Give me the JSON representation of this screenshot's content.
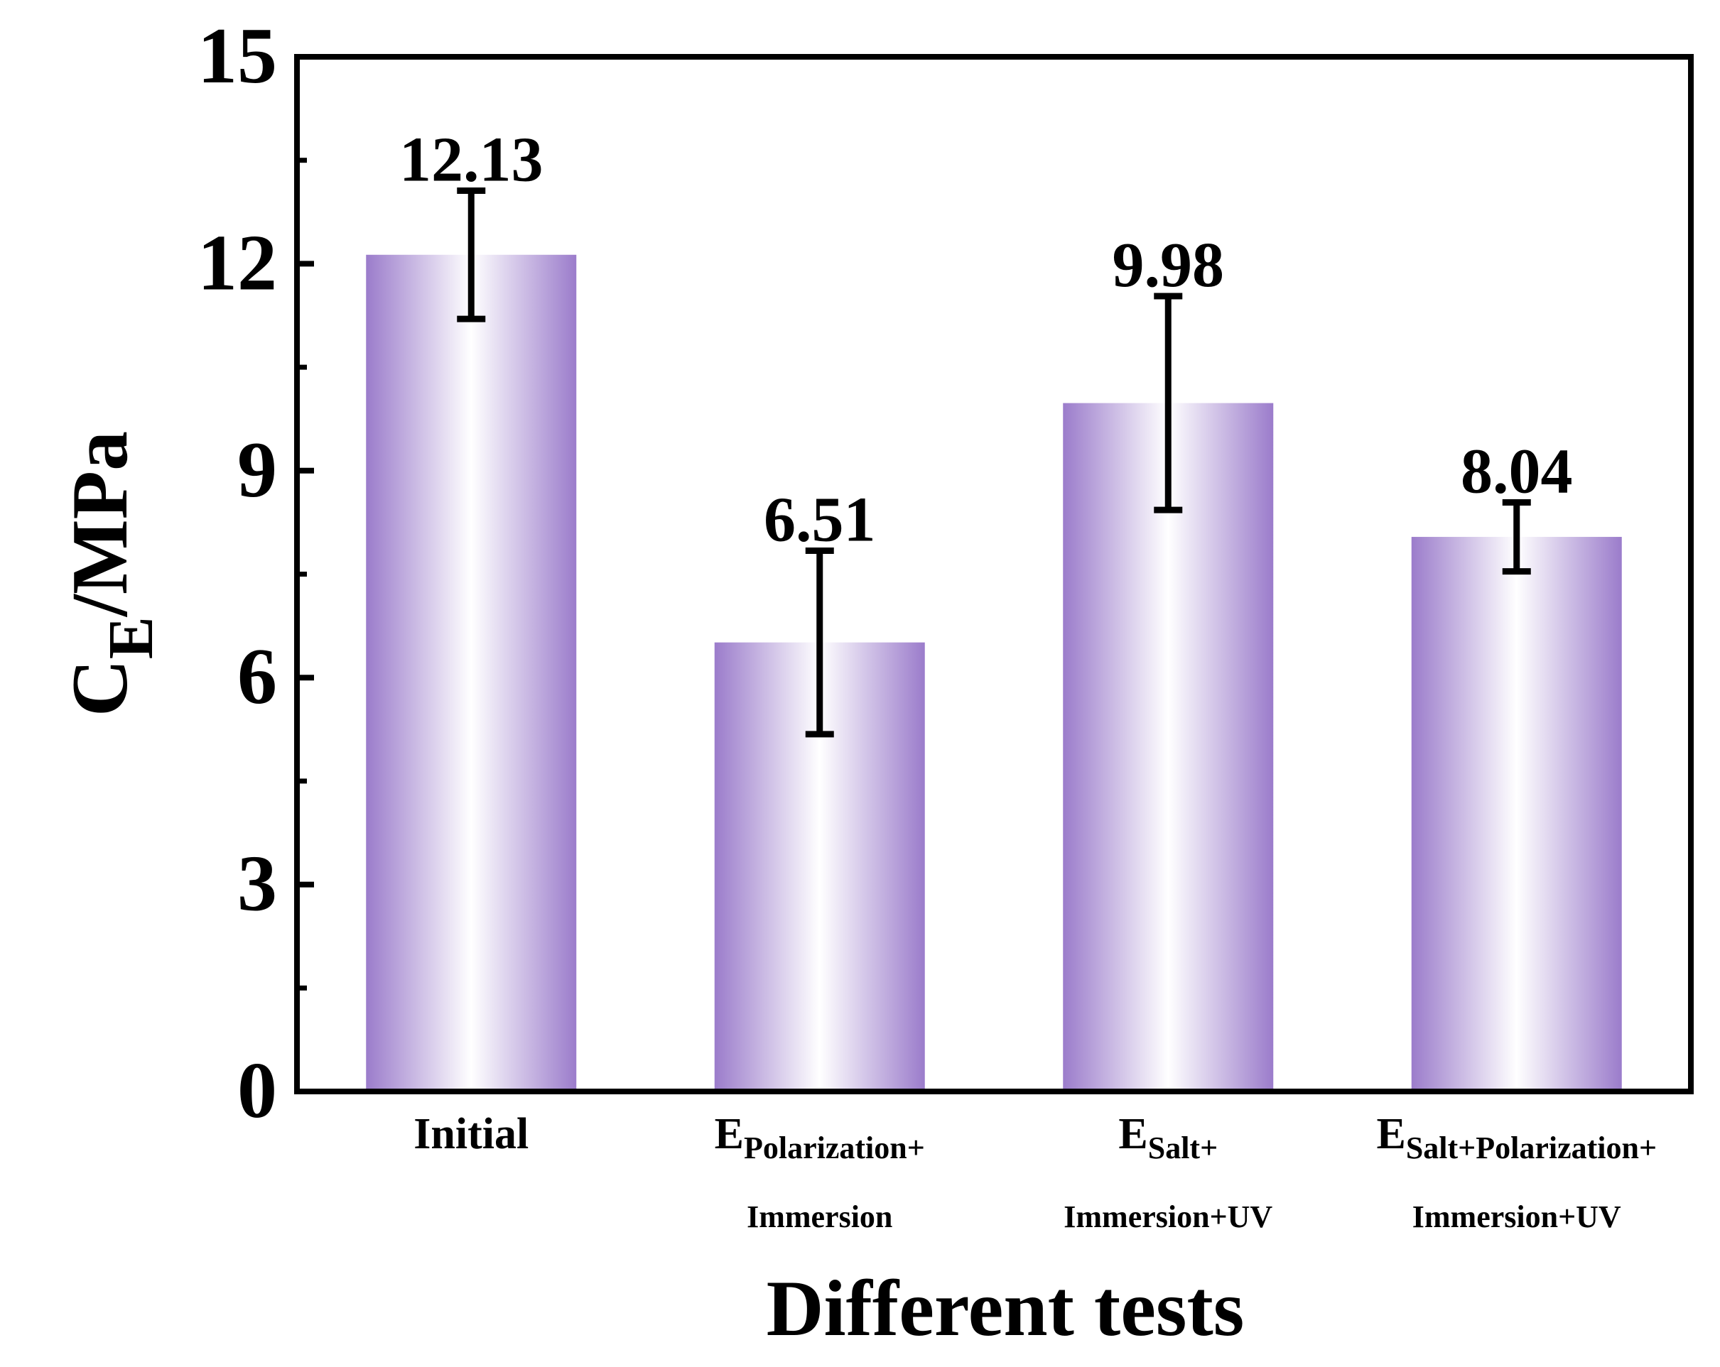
{
  "chart_data": {
    "type": "bar",
    "title": "",
    "xlabel": "Different tests",
    "ylabel": {
      "main": "C",
      "sub": "E",
      "rest": "/MPa"
    },
    "ylim": [
      0,
      15
    ],
    "yticks": [
      0,
      3,
      6,
      9,
      12,
      15
    ],
    "categories": [
      {
        "label": "Initial",
        "main": "",
        "sub": "",
        "line2": ""
      },
      {
        "label": "E Polarization+ Immersion",
        "main": "E",
        "sub": "Polarization+",
        "line2": "Immersion"
      },
      {
        "label": "E Salt+ Immersion+UV",
        "main": "E",
        "sub": "Salt+",
        "line2": "Immersion+UV"
      },
      {
        "label": "E Salt+Polarization+ Immersion+UV",
        "main": "E",
        "sub": "Salt+Polarization+",
        "line2": "Immersion+UV"
      }
    ],
    "values": [
      12.13,
      6.51,
      9.98,
      8.04
    ],
    "value_labels": [
      "12.13",
      "6.51",
      "9.98",
      "8.04"
    ],
    "errors": [
      0.93,
      1.33,
      1.55,
      0.5
    ],
    "bar_color": "#9b7ccb",
    "grid": false,
    "legend": "none"
  }
}
